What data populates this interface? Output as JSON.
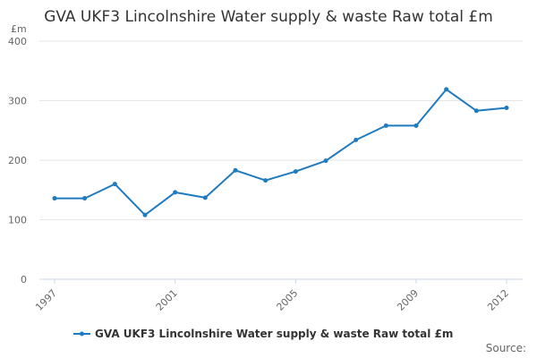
{
  "chart_data": {
    "type": "line",
    "title": "GVA UKF3 Lincolnshire Water supply & waste Raw total £m",
    "ylabel": "£m",
    "xlabel": "",
    "ylim": [
      0,
      400
    ],
    "yticks": [
      0,
      100,
      200,
      300,
      400
    ],
    "xticks": [
      1997,
      2001,
      2005,
      2009,
      2012
    ],
    "xlim": [
      1997,
      2012
    ],
    "grid": true,
    "legend_position": "bottom",
    "series": [
      {
        "name": "GVA UKF3 Lincolnshire Water supply & waste Raw total £m",
        "color": "#1f7bbf",
        "x": [
          1997,
          1998,
          1999,
          2000,
          2001,
          2002,
          2003,
          2004,
          2005,
          2006,
          2007,
          2008,
          2009,
          2010,
          2011,
          2012
        ],
        "values": [
          136,
          136,
          160,
          108,
          146,
          137,
          183,
          166,
          181,
          199,
          234,
          258,
          258,
          319,
          283,
          288
        ]
      }
    ]
  },
  "source_label": "Source:"
}
